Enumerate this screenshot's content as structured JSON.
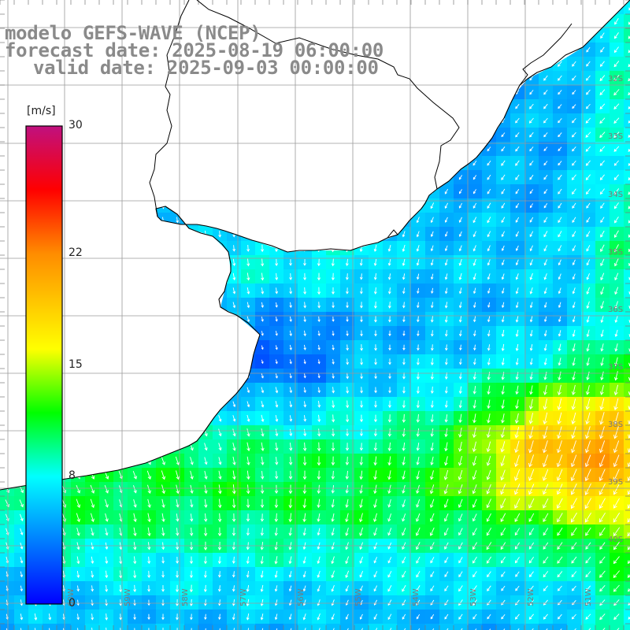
{
  "map": {
    "title_line1": "modelo GEFS-WAVE (NCEP)",
    "title_line2": "forecast date: 2025-08-19 06:00:00",
    "title_line3": "valid date: 2025-09-03 00:00:00",
    "variable": "wind speed and direction",
    "colors": {
      "ocean_low": "#0000ff",
      "ocean_mid": "#00ffff",
      "ocean_high": "#ffff00",
      "grid": "#b0b0b0",
      "coast": "#000000",
      "arrow": "#ffffff"
    },
    "lat_labels": [
      "32S",
      "33S",
      "34S",
      "35S",
      "36S",
      "37S",
      "38S",
      "39S",
      "40S"
    ],
    "lon_labels": [
      "60W",
      "59W",
      "58W",
      "57W",
      "56W",
      "55W",
      "54W",
      "53W",
      "52W",
      "51W"
    ]
  },
  "colorbar": {
    "unit": "[m/s]",
    "ticks": [
      {
        "value": 30,
        "label": "30"
      },
      {
        "value": 22,
        "label": "22"
      },
      {
        "value": 15,
        "label": "15"
      },
      {
        "value": 8,
        "label": "8"
      },
      {
        "value": 0,
        "label": "0"
      }
    ],
    "stops": [
      {
        "value": 0,
        "color": "#0000ff"
      },
      {
        "value": 8,
        "color": "#00ffff"
      },
      {
        "value": 12,
        "color": "#00ff00"
      },
      {
        "value": 16,
        "color": "#ffff00"
      },
      {
        "value": 22,
        "color": "#ff8c00"
      },
      {
        "value": 26,
        "color": "#ff0000"
      },
      {
        "value": 30,
        "color": "#c0107f"
      }
    ]
  }
}
